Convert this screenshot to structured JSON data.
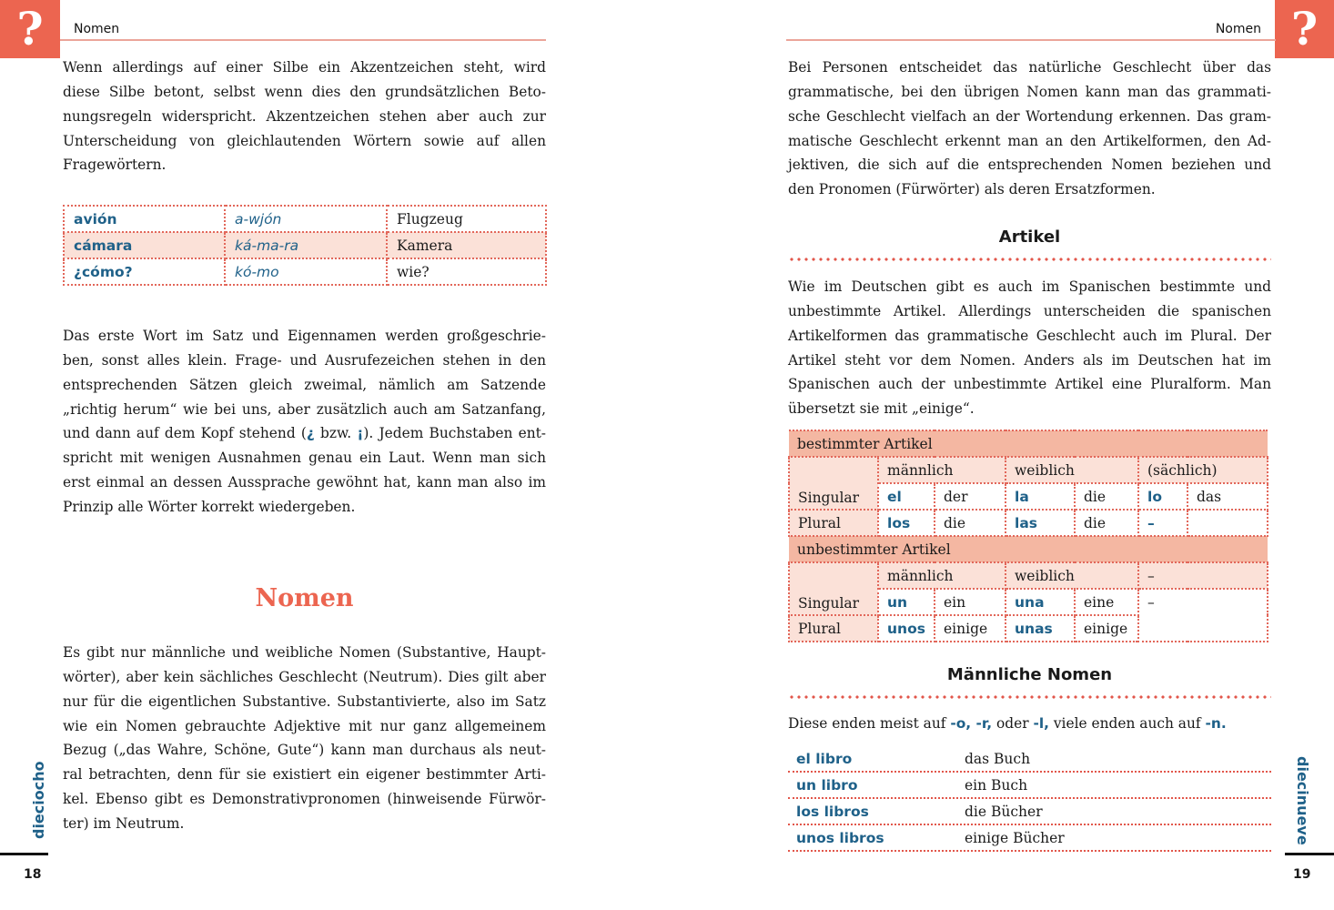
{
  "left": {
    "running_head": "Nomen",
    "icon": "question-mark-icon",
    "para1": [
      "Wenn allerdings auf einer Silbe ein Akzentzeichen steht, wird",
      "diese Silbe betont, selbst wenn dies den grundsätzlichen Beto-",
      "nungsregeln widerspricht. Akzentzeichen stehen aber auch zur",
      "Unterscheidung von gleichlautenden Wörtern sowie auf allen",
      "Fragewörtern."
    ],
    "accent_table": [
      [
        "avión",
        "a-wjón",
        "Flugzeug"
      ],
      [
        "cámara",
        "ká-ma-ra",
        "Kamera"
      ],
      [
        "¿cómo?",
        "kó-mo",
        "wie?"
      ]
    ],
    "para2": [
      "Das erste Wort im Satz und Eigennamen werden großgeschrie-",
      "ben, sonst alles klein. Frage- und Ausrufezeichen stehen in den",
      "entsprechenden Sätzen gleich zweimal, nämlich am Satzende",
      "„richtig herum“ wie bei uns, aber zusätzlich auch am Satzanfang,"
    ],
    "para2_line5": {
      "pre": "und dann auf dem Kopf stehend (",
      "q": "¿",
      "mid": " bzw. ",
      "e": "¡",
      "post": "). Jedem Buchstaben ent-"
    },
    "para2_rest": [
      "spricht mit wenigen Ausnahmen genau ein Laut. Wenn man sich",
      "erst einmal an dessen Aussprache gewöhnt hat, kann man also im",
      "Prinzip alle Wörter korrekt wiedergeben."
    ],
    "heading": "Nomen",
    "para3": [
      "Es gibt nur männliche und weibliche Nomen (Substantive, Haupt-",
      "wörter), aber kein sächliches Geschlecht (Neutrum). Dies gilt aber",
      "nur für die eigentlichen Substantive. Substantivierte, also im Satz",
      "wie ein Nomen gebrauchte Adjektive mit nur ganz allgemeinem",
      "Bezug („das Wahre, Schöne, Gute“) kann man durchaus als neut-",
      "ral betrachten, denn für sie existiert ein eigener bestimmter Arti-",
      "kel. Ebenso gibt es Demonstrativpronomen (hinweisende Fürwör-",
      "ter) im Neutrum."
    ],
    "side_word": "dieciocho",
    "page_number": "18"
  },
  "right": {
    "running_head": "Nomen",
    "icon": "question-mark-icon",
    "para1": [
      "Bei Personen entscheidet das natürliche Geschlecht über das",
      "grammatische, bei den übrigen Nomen kann man das grammati-",
      "sche Geschlecht vielfach an der Wortendung erkennen. Das gram-",
      "matische Geschlecht erkennt man an den Artikelformen, den Ad-",
      "jektiven, die sich auf die entsprechenden Nomen beziehen und",
      "den Pronomen (Fürwörter) als deren Ersatzformen."
    ],
    "heading_articles": "Artikel",
    "para2": [
      "Wie im Deutschen gibt es auch im Spanischen bestimmte und",
      "unbestimmte Artikel. Allerdings unterscheiden die spanischen",
      "Artikelformen das grammatische Geschlecht auch im Plural. Der",
      "Artikel steht vor dem Nomen. Anders als im Deutschen hat im",
      "Spanischen auch der unbestimmte Artikel eine Pluralform. Man",
      "übersetzt sie mit „einige“."
    ],
    "article_table": {
      "definite": {
        "title": "bestimmter Artikel",
        "genders": [
          "männlich",
          "weiblich",
          "(sächlich)"
        ],
        "singular": {
          "label": "Singular",
          "cells": [
            "el",
            "der",
            "la",
            "die",
            "lo",
            "das"
          ]
        },
        "plural": {
          "label": "Plural",
          "cells": [
            "los",
            "die",
            "las",
            "die",
            "–",
            ""
          ]
        }
      },
      "indefinite": {
        "title": "unbestimmter Artikel",
        "genders": [
          "männlich",
          "weiblich",
          "–"
        ],
        "singular": {
          "label": "Singular",
          "cells": [
            "un",
            "ein",
            "una",
            "eine",
            "–"
          ]
        },
        "plural": {
          "label": "Plural",
          "cells": [
            "unos",
            "einige",
            "unas",
            "einige"
          ]
        }
      }
    },
    "heading_masc": "Männliche Nomen",
    "endings": {
      "pre": "Diese enden meist auf ",
      "a": "-o, -r,",
      "mid": " oder ",
      "b": "-l,",
      "mid2": " viele enden auch auf ",
      "c": "-n."
    },
    "examples": [
      [
        "el libro",
        "das Buch"
      ],
      [
        "un libro",
        "ein Buch"
      ],
      [
        "los libros",
        "die Bücher"
      ],
      [
        "unos libros",
        "einige Bücher"
      ]
    ],
    "side_word": "diecinueve",
    "page_number": "19"
  },
  "colors": {
    "accent": "#ec6550",
    "spanish_blue": "#1f6189",
    "table_header": "#f4b7a2",
    "table_tint": "#fbe1d8"
  }
}
